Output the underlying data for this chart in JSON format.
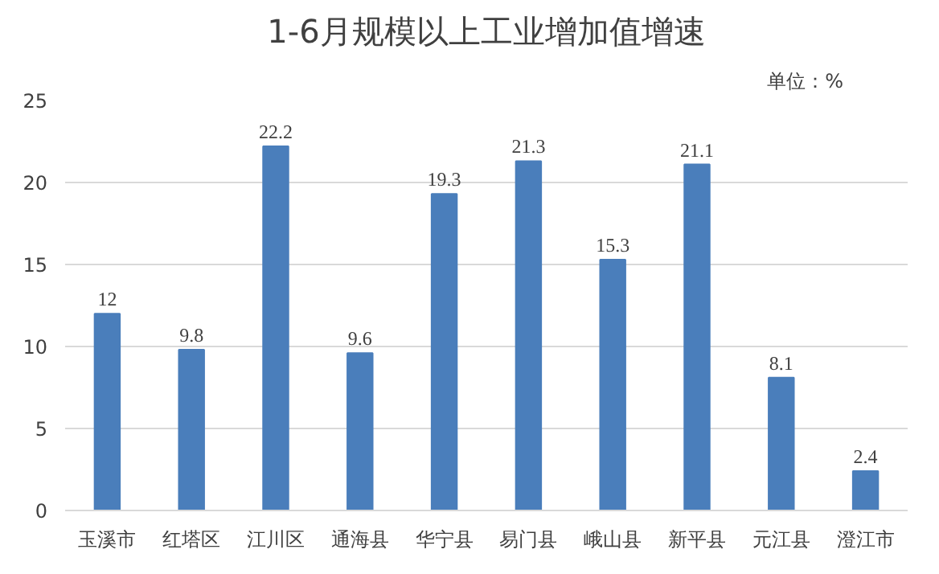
{
  "chart_data": {
    "type": "bar",
    "title": "1-6月规模以上工业增加值增速",
    "annotations": [
      "单位：%"
    ],
    "categories": [
      "玉溪市",
      "红塔区",
      "江川区",
      "通海县",
      "华宁县",
      "易门县",
      "峨山县",
      "新平县",
      "元江县",
      "澄江市"
    ],
    "values": [
      12,
      9.8,
      22.2,
      9.6,
      19.3,
      21.3,
      15.3,
      21.1,
      8.1,
      2.4
    ],
    "color": "#4a7ebb",
    "ylim": [
      0,
      25
    ],
    "yticks": [
      0,
      5,
      10,
      15,
      20,
      25
    ],
    "grid": "y",
    "data_labels": true
  }
}
